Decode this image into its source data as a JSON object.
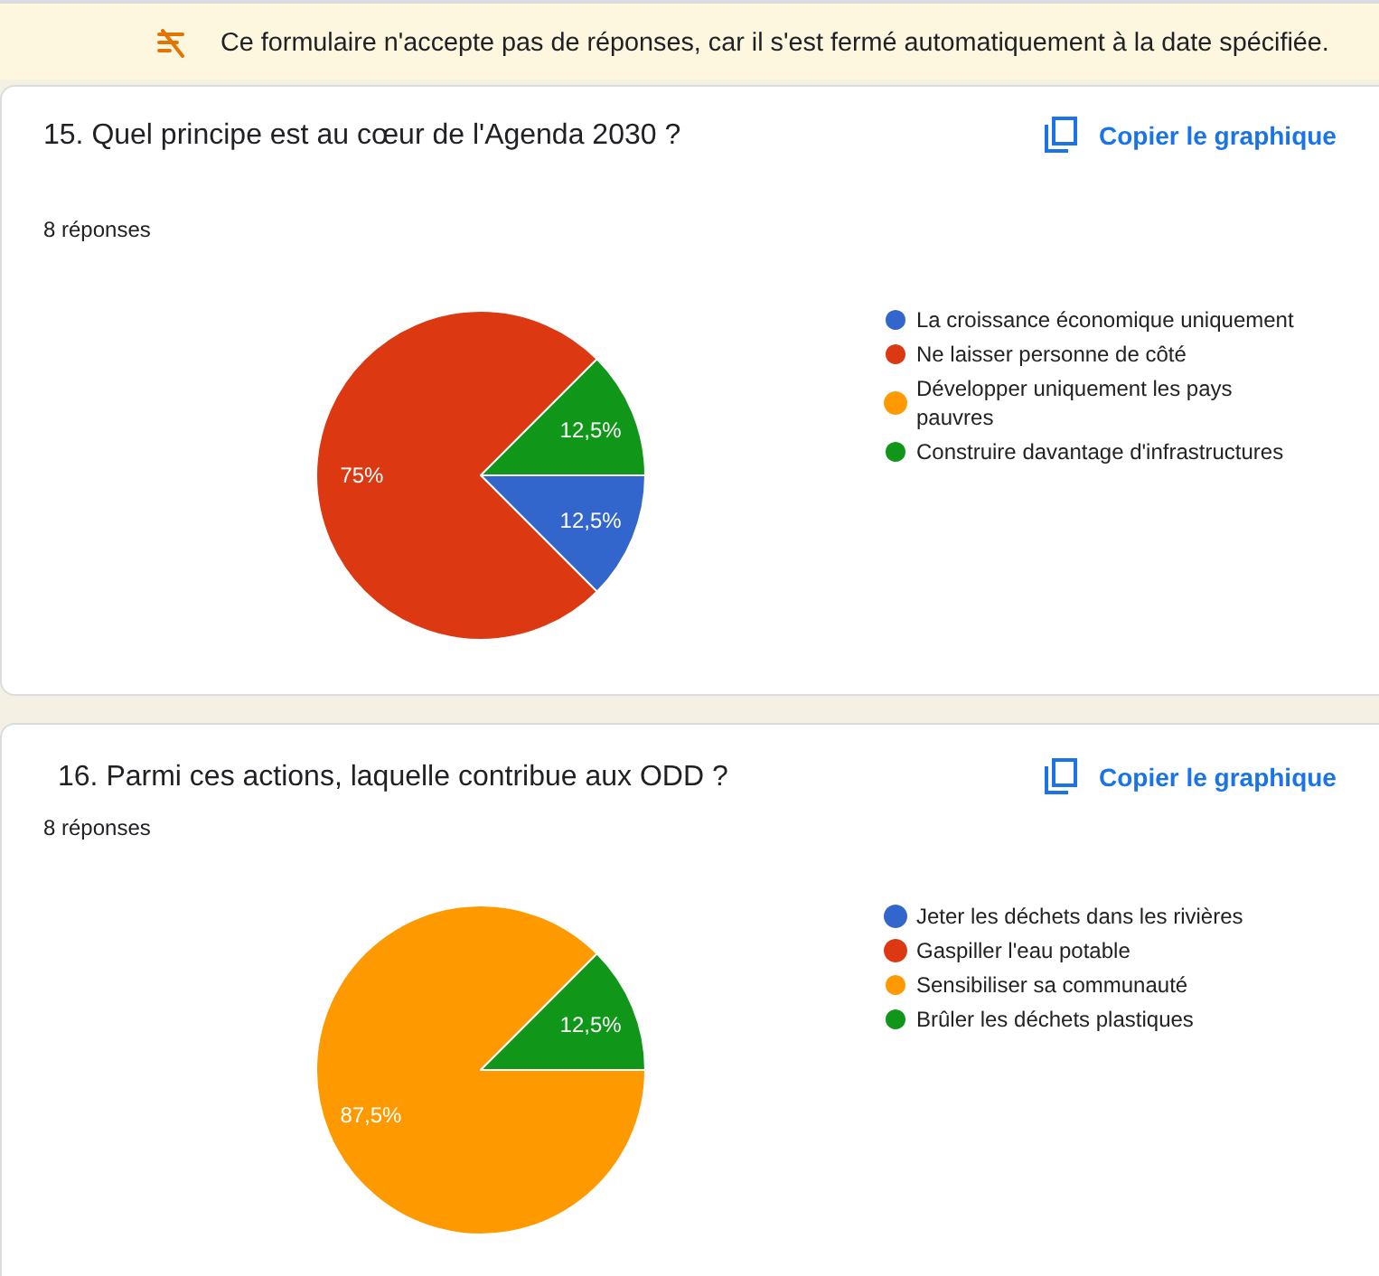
{
  "chart_data": [
    {
      "type": "pie",
      "title": "15. Quel principe est au cœur de l'Agenda 2030 ?",
      "subtitle": "8 réponses",
      "categories": [
        "La croissance économique uniquement",
        "Ne laisser personne de côté",
        "Développer uniquement les pays pauvres",
        "Construire davantage d'infrastructures"
      ],
      "values": [
        12.5,
        75,
        0,
        12.5
      ],
      "colors": [
        "#3366cc",
        "#dc3912",
        "#ff9900",
        "#109618"
      ],
      "value_labels": [
        "12,5%",
        "75%",
        null,
        "12,5%"
      ],
      "legend": "right",
      "annotations": [
        "Ce formulaire n'accepte pas de réponses, car il s'est fermé automatiquement à la date spécifiée.",
        "Copier le graphique"
      ]
    },
    {
      "type": "pie",
      "title": "16. Parmi ces actions, laquelle contribue aux ODD ?",
      "subtitle": "8 réponses",
      "categories": [
        "Jeter les déchets dans les rivières",
        "Gaspiller l'eau potable",
        "Sensibiliser sa communauté",
        "Brûler les déchets plastiques"
      ],
      "values": [
        0,
        0,
        87.5,
        12.5
      ],
      "colors": [
        "#3366cc",
        "#dc3912",
        "#ff9900",
        "#109618"
      ],
      "value_labels": [
        null,
        null,
        "87,5%",
        "12,5%"
      ],
      "legend": "right",
      "annotations": [
        "Copier le graphique"
      ]
    }
  ]
}
